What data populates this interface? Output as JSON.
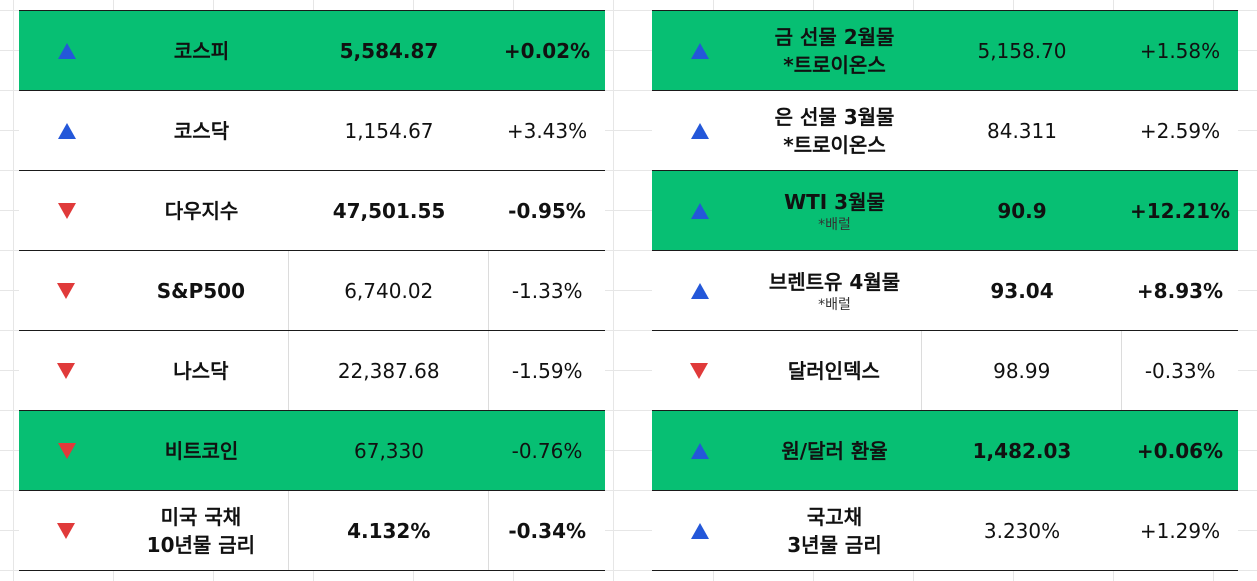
{
  "colors": {
    "highlight": "#07bf73",
    "up": "#2458d9",
    "down": "#e03a3a"
  },
  "left_rows": [
    {
      "direction": "up",
      "name": "코스피",
      "value": "5,584.87",
      "change": "+0.02%"
    },
    {
      "direction": "up",
      "name": "코스닥",
      "value": "1,154.67",
      "change": "+3.43%"
    },
    {
      "direction": "down",
      "name": "다우지수",
      "value": "47,501.55",
      "change": "-0.95%"
    },
    {
      "direction": "down",
      "name": "S&P500",
      "value": "6,740.02",
      "change": "-1.33%"
    },
    {
      "direction": "down",
      "name": "나스닥",
      "value": "22,387.68",
      "change": "-1.59%"
    },
    {
      "direction": "down",
      "name": "비트코인",
      "value": "67,330",
      "change": "-0.76%"
    },
    {
      "direction": "down",
      "name_line1": "미국 국채",
      "name_line2": "10년물 금리",
      "value": "4.132%",
      "change": "-0.34%"
    }
  ],
  "right_rows": [
    {
      "direction": "up",
      "name_line1": "금 선물 2월물",
      "name_line2": "*트로이온스",
      "value": "5,158.70",
      "change": "+1.58%"
    },
    {
      "direction": "up",
      "name_line1": "은 선물 3월물",
      "name_line2": "*트로이온스",
      "value": "84.311",
      "change": "+2.59%"
    },
    {
      "direction": "up",
      "name": "WTI 3월물",
      "sub": "*배럴",
      "value": "90.9",
      "change": "+12.21%"
    },
    {
      "direction": "up",
      "name": "브렌트유 4월물",
      "sub": "*배럴",
      "value": "93.04",
      "change": "+8.93%"
    },
    {
      "direction": "down",
      "name": "달러인덱스",
      "value": "98.99",
      "change": "-0.33%"
    },
    {
      "direction": "up",
      "name": "원/달러 환율",
      "value": "1,482.03",
      "change": "+0.06%"
    },
    {
      "direction": "up",
      "name_line1": "국고채",
      "name_line2": "3년물 금리",
      "value": "3.230%",
      "change": "+1.29%"
    }
  ]
}
